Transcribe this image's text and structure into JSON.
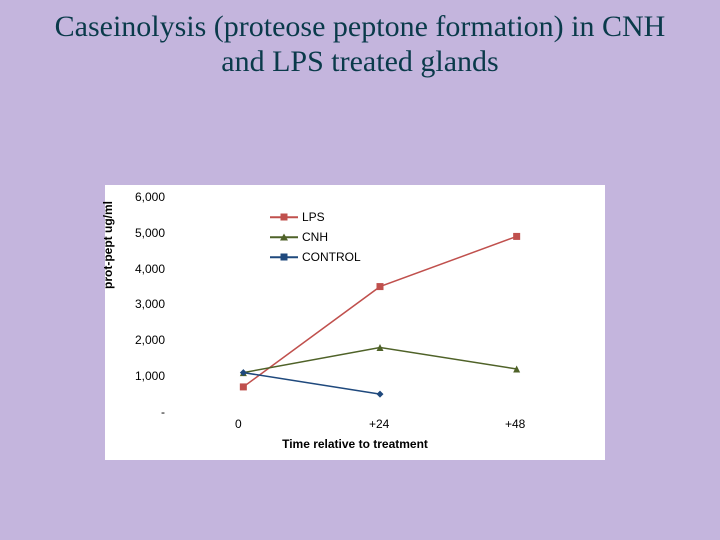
{
  "title": "Caseinolysis (proteose peptone formation) in CNH and LPS treated glands",
  "chart": {
    "type": "line",
    "background_color": "#ffffff",
    "slide_background_color": "#c4b5dd",
    "title_color": "#0a3a4a",
    "title_fontsize": 30,
    "x_axis": {
      "title": "Time relative to treatment",
      "title_fontsize": 12,
      "title_fontweight": "bold",
      "categories": [
        "0",
        "+24",
        "+48"
      ],
      "tick_fontsize": 12
    },
    "y_axis": {
      "title": "prot-pept ug/ml",
      "title_fontsize": 12,
      "title_fontweight": "bold",
      "min": 0,
      "max": 6000,
      "tick_step": 1000,
      "tick_labels": [
        "-",
        "1,000",
        "2,000",
        "3,000",
        "4,000",
        "5,000",
        "6,000"
      ],
      "tick_fontsize": 12
    },
    "line_width": 1.5,
    "marker_size": 7,
    "series": [
      {
        "name": "LPS",
        "color": "#c0504d",
        "marker": "square",
        "values": [
          700,
          3500,
          4900
        ]
      },
      {
        "name": "CNH",
        "color": "#4f6228",
        "marker": "triangle",
        "values": [
          1100,
          1800,
          1200
        ]
      },
      {
        "name": "CONTROL",
        "color": "#1f497d",
        "marker": "diamond",
        "values": [
          1100,
          500,
          null
        ]
      }
    ],
    "legend": {
      "position": "inside-top-left"
    }
  }
}
